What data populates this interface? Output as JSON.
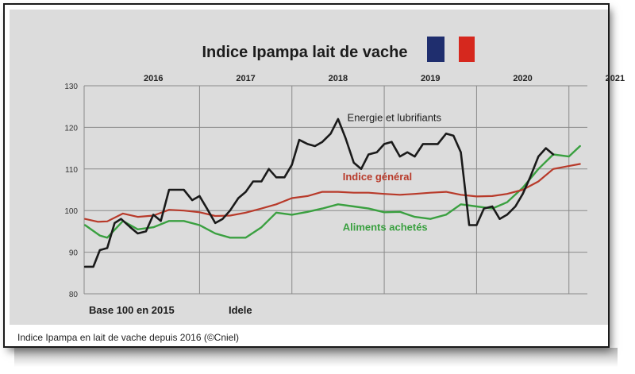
{
  "caption": "Indice Ipampa en lait de vache depuis 2016 (©Cniel)",
  "colors": {
    "energie": "#1a1a1a",
    "general": "#b83a2a",
    "aliments": "#3aa040",
    "flag_blue": "#1f2e6e",
    "flag_red": "#d6281e"
  },
  "chart_data": {
    "type": "line",
    "title": "Indice Ipampa lait de vache",
    "xlabel": "",
    "ylabel": "",
    "ylim": [
      80,
      130
    ],
    "yticks": [
      "80",
      "90",
      "100",
      "110",
      "120",
      "130"
    ],
    "year_labels": [
      "2016",
      "2017",
      "2018",
      "2019",
      "2020",
      "2021"
    ],
    "xlim": [
      2015.75,
      2021.2
    ],
    "grid": true,
    "legend": "inline labels",
    "notes": [
      "Base 100 en 2015",
      "Idele"
    ],
    "series": [
      {
        "name": "Energie et lubrifiants",
        "x": [
          2015.76,
          2015.85,
          2015.92,
          2016.0,
          2016.08,
          2016.15,
          2016.25,
          2016.33,
          2016.42,
          2016.5,
          2016.58,
          2016.67,
          2016.75,
          2016.83,
          2016.92,
          2017.0,
          2017.08,
          2017.17,
          2017.25,
          2017.33,
          2017.42,
          2017.5,
          2017.58,
          2017.67,
          2017.75,
          2017.83,
          2017.92,
          2018.0,
          2018.08,
          2018.17,
          2018.25,
          2018.33,
          2018.42,
          2018.5,
          2018.58,
          2018.67,
          2018.75,
          2018.83,
          2018.92,
          2019.0,
          2019.08,
          2019.17,
          2019.25,
          2019.33,
          2019.42,
          2019.5,
          2019.58,
          2019.67,
          2019.75,
          2019.83,
          2019.92,
          2020.0,
          2020.08,
          2020.17,
          2020.25,
          2020.33,
          2020.42,
          2020.5,
          2020.58,
          2020.67,
          2020.75,
          2020.83
        ],
        "y": [
          86.5,
          86.5,
          90.5,
          91,
          97,
          98,
          96,
          94.5,
          95,
          99,
          97.5,
          105,
          105,
          105,
          102.5,
          103.5,
          100.5,
          97,
          98,
          100,
          103,
          104.5,
          107,
          107,
          110,
          108,
          108,
          111,
          117,
          116,
          115.5,
          116.5,
          118.5,
          122,
          117.5,
          111.5,
          110,
          113.5,
          114,
          116,
          116.5,
          113,
          114,
          113,
          116,
          116,
          116,
          118.5,
          118,
          114,
          96.5,
          96.5,
          100.5,
          101,
          98,
          99,
          101,
          104,
          108,
          113,
          115,
          113.5
        ]
      },
      {
        "name": "Indice général",
        "x": [
          2015.76,
          2015.9,
          2016.0,
          2016.17,
          2016.33,
          2016.5,
          2016.67,
          2016.83,
          2017.0,
          2017.17,
          2017.33,
          2017.5,
          2017.67,
          2017.83,
          2018.0,
          2018.17,
          2018.33,
          2018.5,
          2018.67,
          2018.83,
          2019.0,
          2019.17,
          2019.33,
          2019.5,
          2019.67,
          2019.83,
          2020.0,
          2020.17,
          2020.33,
          2020.5,
          2020.67,
          2020.83,
          2021.0,
          2021.12
        ],
        "y": [
          98,
          97.3,
          97.4,
          99.3,
          98.5,
          98.8,
          100.2,
          100,
          99.6,
          98.7,
          98.8,
          99.5,
          100.5,
          101.5,
          103,
          103.5,
          104.5,
          104.5,
          104.3,
          104.3,
          104,
          103.8,
          104,
          104.3,
          104.5,
          103.8,
          103.4,
          103.5,
          104,
          105,
          107,
          110,
          110.7,
          111.2
        ]
      },
      {
        "name": "Aliments achetés",
        "x": [
          2015.76,
          2015.92,
          2016.0,
          2016.17,
          2016.33,
          2016.5,
          2016.67,
          2016.83,
          2017.0,
          2017.17,
          2017.33,
          2017.5,
          2017.67,
          2017.83,
          2018.0,
          2018.17,
          2018.33,
          2018.5,
          2018.67,
          2018.83,
          2019.0,
          2019.17,
          2019.33,
          2019.5,
          2019.67,
          2019.83,
          2020.0,
          2020.17,
          2020.33,
          2020.5,
          2020.67,
          2020.83,
          2021.0,
          2021.12
        ],
        "y": [
          96.5,
          94,
          93.5,
          97.5,
          95.5,
          96,
          97.5,
          97.5,
          96.5,
          94.5,
          93.5,
          93.5,
          96,
          99.5,
          99,
          99.7,
          100.5,
          101.5,
          101,
          100.5,
          99.6,
          99.7,
          98.5,
          98,
          99,
          101.5,
          101,
          100.5,
          102,
          105.5,
          110,
          113.5,
          113,
          115.5
        ]
      }
    ]
  }
}
